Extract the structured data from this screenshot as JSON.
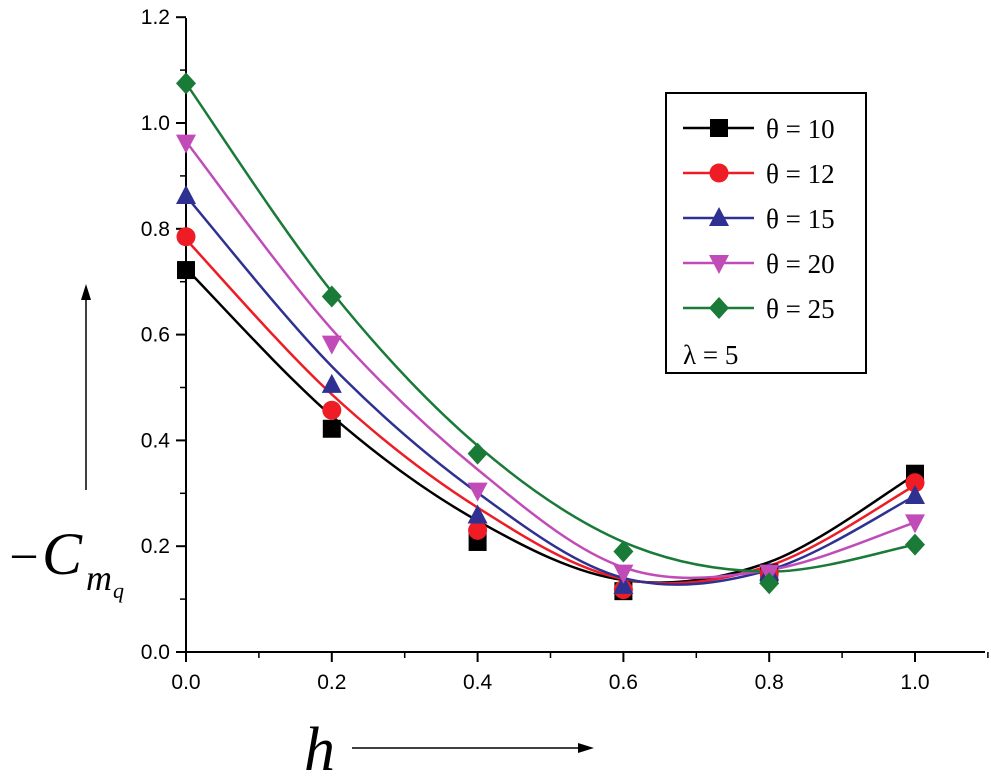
{
  "chart_data": {
    "type": "line",
    "title": "",
    "xlabel": "h",
    "ylabel": {
      "prefix": "−",
      "main": "C",
      "sub": "m",
      "subsub": "q"
    },
    "xlim": [
      0,
      1.1
    ],
    "ylim": [
      0,
      1.2
    ],
    "x_ticks": [
      "0.0",
      "0.2",
      "0.4",
      "0.6",
      "0.8",
      "1.0"
    ],
    "y_ticks": [
      "0.0",
      "0.2",
      "0.4",
      "0.6",
      "0.8",
      "1.0",
      "1.2"
    ],
    "x": [
      0.0,
      0.2,
      0.4,
      0.6,
      0.8,
      1.0
    ],
    "legend_note": "λ = 5",
    "series": [
      {
        "name": "θ = 10",
        "color": "#000000",
        "marker": "square",
        "values": [
          0.722,
          0.422,
          0.208,
          0.115,
          0.15,
          0.337
        ],
        "fit": [
          0.725,
          0.446,
          0.248,
          0.136,
          0.17,
          0.335
        ]
      },
      {
        "name": "θ = 12",
        "color": "#ee1c25",
        "marker": "circle",
        "values": [
          0.785,
          0.457,
          0.23,
          0.118,
          0.148,
          0.32
        ],
        "fit": [
          0.78,
          0.487,
          0.273,
          0.138,
          0.163,
          0.315
        ]
      },
      {
        "name": "θ = 15",
        "color": "#2e3192",
        "marker": "triangle-up",
        "values": [
          0.862,
          0.505,
          0.258,
          0.125,
          0.15,
          0.295
        ],
        "fit": [
          0.862,
          0.54,
          0.301,
          0.14,
          0.155,
          0.295
        ]
      },
      {
        "name": "θ = 20",
        "color": "#c14cb8",
        "marker": "triangle-down",
        "values": [
          0.963,
          0.583,
          0.305,
          0.15,
          0.15,
          0.245
        ],
        "fit": [
          0.965,
          0.61,
          0.345,
          0.16,
          0.155,
          0.245
        ]
      },
      {
        "name": "θ = 25",
        "color": "#1a7a37",
        "marker": "diamond",
        "values": [
          1.075,
          0.672,
          0.375,
          0.19,
          0.13,
          0.203
        ],
        "fit": [
          1.075,
          0.681,
          0.39,
          0.208,
          0.152,
          0.203
        ]
      }
    ]
  }
}
